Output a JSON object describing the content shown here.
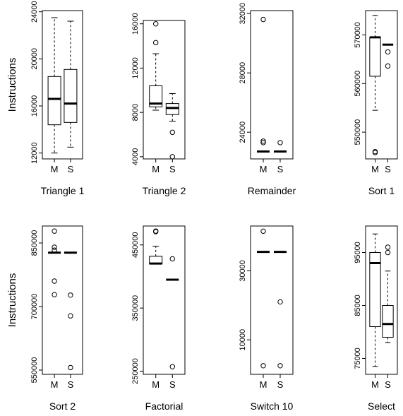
{
  "chart_data": [
    {
      "type": "box",
      "title": "Triangle 1",
      "ylabel": "Instructions",
      "ylim": [
        11500,
        24100
      ],
      "yticks": [
        12000,
        16000,
        20000,
        24000
      ],
      "ytick_labels": [
        "12000",
        "16000",
        "20000",
        "24000"
      ],
      "categories": [
        "M",
        "S"
      ],
      "boxes": [
        {
          "min": 12000,
          "q1": 14400,
          "median": 16600,
          "q3": 18500,
          "max": 23500,
          "outliers": []
        },
        {
          "min": 12500,
          "q1": 14600,
          "median": 16200,
          "q3": 19100,
          "max": 23200,
          "outliers": []
        }
      ]
    },
    {
      "type": "box",
      "title": "Triangle 2",
      "ylabel": "",
      "ylim": [
        3800,
        16300
      ],
      "yticks": [
        4000,
        8000,
        12000,
        16000
      ],
      "ytick_labels": [
        "4000",
        "8000",
        "12000",
        "16000"
      ],
      "categories": [
        "M",
        "S"
      ],
      "boxes": [
        {
          "min": 8200,
          "q1": 8500,
          "median": 8800,
          "q3": 10400,
          "max": 13300,
          "outliers": [
            14300,
            16000
          ]
        },
        {
          "min": 7200,
          "q1": 7800,
          "median": 8400,
          "q3": 8800,
          "max": 9700,
          "outliers": [
            6200,
            4000
          ]
        }
      ]
    },
    {
      "type": "box",
      "title": "Remainder",
      "ylabel": "",
      "ylim": [
        22200,
        32200
      ],
      "yticks": [
        24000,
        28000,
        32000
      ],
      "ytick_labels": [
        "24000",
        "28000",
        "32000"
      ],
      "categories": [
        "M",
        "S"
      ],
      "boxes": [
        {
          "min": 22700,
          "q1": 22700,
          "median": 22700,
          "q3": 22700,
          "max": 22700,
          "outliers": [
            31600,
            23400,
            23300
          ]
        },
        {
          "min": 22700,
          "q1": 22700,
          "median": 22700,
          "q3": 22700,
          "max": 22700,
          "outliers": [
            23300
          ]
        }
      ]
    },
    {
      "type": "box",
      "title": "Sort 1",
      "ylabel": "",
      "ylim": [
        544500,
        575000
      ],
      "yticks": [
        550000,
        560000,
        570000
      ],
      "ytick_labels": [
        "550000",
        "560000",
        "570000"
      ],
      "categories": [
        "M",
        "S"
      ],
      "boxes": [
        {
          "min": 554500,
          "q1": 561500,
          "median": 569500,
          "q3": 569500,
          "max": 574000,
          "outliers": [
            546000,
            545800
          ]
        },
        {
          "min": 568000,
          "q1": 568000,
          "median": 568000,
          "q3": 568000,
          "max": 568000,
          "outliers": [
            566500,
            563600
          ]
        }
      ]
    },
    {
      "type": "box",
      "title": "Sort 2",
      "ylabel": "Instructions",
      "ylim": [
        540000,
        890000
      ],
      "yticks": [
        550000,
        700000,
        850000
      ],
      "ytick_labels": [
        "550000",
        "700000",
        "850000"
      ],
      "categories": [
        "M",
        "S"
      ],
      "boxes": [
        {
          "min": 827000,
          "q1": 827000,
          "median": 827000,
          "q3": 827000,
          "max": 827000,
          "outliers": [
            878000,
            840000,
            833000,
            760000,
            728000
          ]
        },
        {
          "min": 827000,
          "q1": 827000,
          "median": 827000,
          "q3": 827000,
          "max": 827000,
          "outliers": [
            727000,
            678000,
            556000
          ]
        }
      ]
    },
    {
      "type": "box",
      "title": "Factorial",
      "ylabel": "",
      "ylim": [
        245000,
        480000
      ],
      "yticks": [
        250000,
        350000,
        450000
      ],
      "ytick_labels": [
        "250000",
        "350000",
        "450000"
      ],
      "categories": [
        "M",
        "S"
      ],
      "boxes": [
        {
          "min": 420000,
          "q1": 420000,
          "median": 420500,
          "q3": 432000,
          "max": 448000,
          "outliers": [
            472000,
            471000
          ]
        },
        {
          "min": 395000,
          "q1": 395000,
          "median": 395000,
          "q3": 395000,
          "max": 395000,
          "outliers": [
            428000,
            257000
          ]
        }
      ]
    },
    {
      "type": "box",
      "title": "Switch 10",
      "ylabel": "",
      "ylim": [
        0,
        43000
      ],
      "yticks": [
        10000,
        30000
      ],
      "ytick_labels": [
        "10000",
        "30000"
      ],
      "categories": [
        "M",
        "S"
      ],
      "boxes": [
        {
          "min": 35500,
          "q1": 35500,
          "median": 35500,
          "q3": 35500,
          "max": 35500,
          "outliers": [
            41500,
            2500
          ]
        },
        {
          "min": 35500,
          "q1": 35500,
          "median": 35500,
          "q3": 35500,
          "max": 35500,
          "outliers": [
            21000,
            2500
          ]
        }
      ]
    },
    {
      "type": "box",
      "title": "Select",
      "ylabel": "",
      "ylim": [
        72000,
        100000
      ],
      "yticks": [
        75000,
        85000,
        95000
      ],
      "ytick_labels": [
        "75000",
        "85000",
        "95000"
      ],
      "categories": [
        "M",
        "S"
      ],
      "boxes": [
        {
          "min": 73500,
          "q1": 81000,
          "median": 93000,
          "q3": 95000,
          "max": 98500,
          "outliers": []
        },
        {
          "min": 78000,
          "q1": 79000,
          "median": 81500,
          "q3": 85000,
          "max": 91500,
          "outliers": [
            95000,
            96000
          ]
        }
      ]
    }
  ]
}
